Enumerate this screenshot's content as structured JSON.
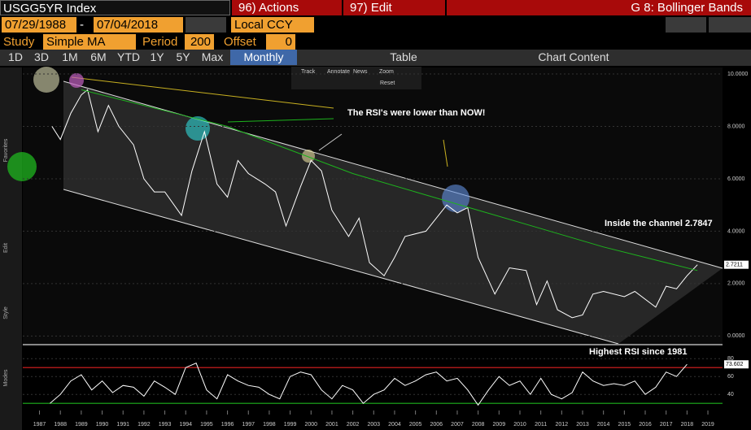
{
  "header": {
    "ticker": "USGG5YR Index",
    "actions": "96) Actions",
    "edit": "97) Edit",
    "chart_name": "G 8: Bollinger Bands",
    "start_date": "07/29/1988",
    "date_separator": "-",
    "end_date": "07/04/2018",
    "currency": "Local CCY",
    "study_label": "Study",
    "study": "Simple MA",
    "period_label": "Period",
    "period": 200,
    "offset_label": "Offset",
    "offset": 0,
    "ranges": [
      "1D",
      "3D",
      "1M",
      "6M",
      "YTD",
      "1Y",
      "5Y",
      "Max"
    ],
    "frequency": "Monthly",
    "table": "Table",
    "chart_content": "Chart Content",
    "chart_tools": [
      "Track",
      "Annotate",
      "News",
      "Zoom"
    ],
    "reset": "Reset",
    "side_labels": [
      "Favorites",
      "Edit",
      "Style",
      "Modes"
    ]
  },
  "chart_data": [
    {
      "type": "line",
      "annotations": [
        "The RSI's were lower than NOW!",
        "Inside the channel 2.7847"
      ],
      "last_value_label": "2.7211",
      "xlim": [
        1986.2,
        2019.7
      ],
      "xticks": [
        1987,
        1988,
        1989,
        1990,
        1991,
        1992,
        1993,
        1994,
        1995,
        1996,
        1997,
        1998,
        1999,
        2000,
        2001,
        2002,
        2003,
        2004,
        2005,
        2006,
        2007,
        2008,
        2009,
        2010,
        2011,
        2012,
        2013,
        2014,
        2015,
        2016,
        2017,
        2018,
        2019
      ],
      "ylim": [
        -0.3,
        10.25
      ],
      "yticks": [
        {
          "value": 0,
          "label": "0.0000"
        },
        {
          "value": 2,
          "label": "2.0000"
        },
        {
          "value": 4,
          "label": "4.0000"
        },
        {
          "value": 6,
          "label": "6.0000"
        },
        {
          "value": 8,
          "label": "8.0000"
        },
        {
          "value": 10,
          "label": "10.0000"
        }
      ],
      "series": [
        {
          "color": "#ffffff",
          "x": [
            1987.6,
            1988.0,
            1988.5,
            1989.0,
            1989.3,
            1989.8,
            1990.3,
            1990.8,
            1991.5,
            1992.0,
            1992.5,
            1993.0,
            1993.8,
            1994.3,
            1994.9,
            1995.5,
            1996.0,
            1996.5,
            1997.0,
            1997.8,
            1998.3,
            1998.8,
            1999.5,
            2000.0,
            2000.5,
            2001.0,
            2001.8,
            2002.3,
            2002.8,
            2003.5,
            2004.0,
            2004.5,
            2005.5,
            2006.5,
            2007.0,
            2007.5,
            2008.0,
            2008.8,
            2009.5,
            2010.3,
            2010.8,
            2011.3,
            2011.8,
            2012.5,
            2013.0,
            2013.5,
            2014.0,
            2015.0,
            2015.5,
            2016.5,
            2017.0,
            2017.5,
            2018.0,
            2018.5
          ],
          "values": [
            8.0,
            7.5,
            8.5,
            9.2,
            9.4,
            7.8,
            8.8,
            8.0,
            7.3,
            6.0,
            5.5,
            5.5,
            4.6,
            6.3,
            7.8,
            5.8,
            5.3,
            6.7,
            6.2,
            5.8,
            5.5,
            4.2,
            5.7,
            6.7,
            6.3,
            4.8,
            3.8,
            4.5,
            2.8,
            2.3,
            3.0,
            3.8,
            4.0,
            5.0,
            4.7,
            4.9,
            3.0,
            1.6,
            2.6,
            2.5,
            1.2,
            2.1,
            1.0,
            0.7,
            0.8,
            1.6,
            1.7,
            1.5,
            1.7,
            1.1,
            1.9,
            1.8,
            2.3,
            2.72
          ]
        },
        {
          "color": "#1db31d",
          "x": [
            1989.0,
            1993.0,
            1996.0,
            1999.0,
            2002.0,
            2005.0,
            2008.0,
            2011.0,
            2014.0,
            2017.0,
            2018.5
          ],
          "values": [
            9.4,
            8.6,
            8.0,
            7.1,
            6.2,
            5.5,
            4.8,
            4.1,
            3.4,
            2.8,
            2.5
          ]
        }
      ]
    },
    {
      "type": "line",
      "annotation": "Highest RSI since 1981",
      "last_value_label": "73.602",
      "xlim": [
        1986.2,
        2019.7
      ],
      "ylim": [
        22,
        92
      ],
      "yticks": [
        40,
        60,
        80
      ],
      "levels": [
        {
          "value": 70,
          "color": "#e02020"
        },
        {
          "value": 30,
          "color": "#1db31d"
        }
      ],
      "series": [
        {
          "color": "#ffffff",
          "x": [
            1987.5,
            1988.0,
            1988.5,
            1989.0,
            1989.5,
            1990.0,
            1990.5,
            1991.0,
            1991.5,
            1992.0,
            1992.5,
            1993.0,
            1993.5,
            1994.0,
            1994.5,
            1995.0,
            1995.5,
            1996.0,
            1996.5,
            1997.0,
            1997.5,
            1998.0,
            1998.5,
            1999.0,
            1999.5,
            2000.0,
            2000.5,
            2001.0,
            2001.5,
            2002.0,
            2002.5,
            2003.0,
            2003.5,
            2004.0,
            2004.5,
            2005.0,
            2005.5,
            2006.0,
            2006.5,
            2007.0,
            2007.5,
            2008.0,
            2008.5,
            2009.0,
            2009.5,
            2010.0,
            2010.5,
            2011.0,
            2011.5,
            2012.0,
            2012.5,
            2013.0,
            2013.5,
            2014.0,
            2014.5,
            2015.0,
            2015.5,
            2016.0,
            2016.5,
            2017.0,
            2017.5,
            2018.0
          ],
          "values": [
            30,
            40,
            55,
            62,
            45,
            55,
            42,
            50,
            48,
            38,
            55,
            48,
            40,
            70,
            75,
            45,
            35,
            62,
            55,
            50,
            48,
            40,
            35,
            60,
            65,
            62,
            45,
            35,
            50,
            45,
            30,
            40,
            45,
            58,
            50,
            55,
            62,
            65,
            55,
            58,
            45,
            28,
            45,
            60,
            50,
            55,
            40,
            58,
            40,
            35,
            42,
            65,
            55,
            50,
            52,
            50,
            55,
            40,
            48,
            65,
            60,
            73.6
          ]
        }
      ]
    }
  ]
}
